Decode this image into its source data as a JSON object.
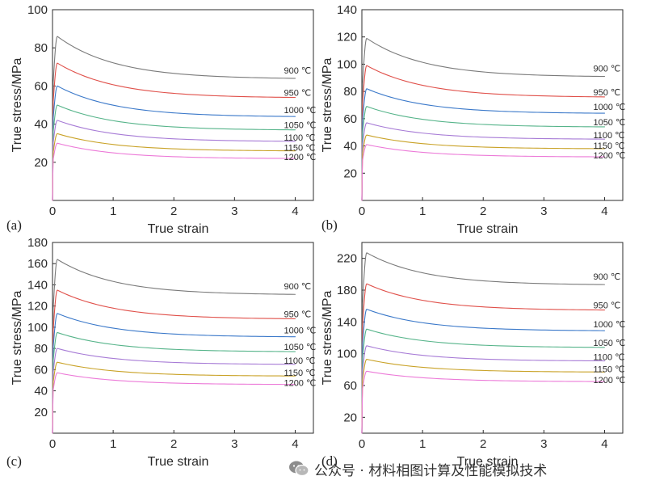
{
  "figure": {
    "watermark": "公众号 · 材料相图计算及性能模拟技术"
  },
  "chart_data": [
    {
      "panel_label": "(a)",
      "type": "line",
      "xlabel": "True strain",
      "ylabel": "True stress/MPa",
      "xlim": [
        0,
        4.3
      ],
      "ylim": [
        0,
        100
      ],
      "xticks": [
        "0",
        "1",
        "2",
        "3",
        "4"
      ],
      "yticks": [
        "20",
        "40",
        "60",
        "80",
        "100"
      ],
      "grid": false,
      "series": [
        {
          "name": "900 ℃",
          "color": "#7a7a7a",
          "peak_strain": 0.08,
          "peak_stress": 86,
          "final_stress": 64
        },
        {
          "name": "950 ℃",
          "color": "#e0504a",
          "peak_strain": 0.08,
          "peak_stress": 72,
          "final_stress": 54
        },
        {
          "name": "1000 ℃",
          "color": "#3a78c9",
          "peak_strain": 0.08,
          "peak_stress": 60,
          "final_stress": 44
        },
        {
          "name": "1050 ℃",
          "color": "#56b48a",
          "peak_strain": 0.08,
          "peak_stress": 50,
          "final_stress": 37
        },
        {
          "name": "1100 ℃",
          "color": "#a77bd6",
          "peak_strain": 0.08,
          "peak_stress": 42,
          "final_stress": 31
        },
        {
          "name": "1150 ℃",
          "color": "#c9a227",
          "peak_strain": 0.08,
          "peak_stress": 35,
          "final_stress": 26
        },
        {
          "name": "1200 ℃",
          "color": "#ec7ad8",
          "peak_strain": 0.08,
          "peak_stress": 30,
          "final_stress": 22
        }
      ]
    },
    {
      "panel_label": "(b)",
      "type": "line",
      "xlabel": "True strain",
      "ylabel": "True stress/MPa",
      "xlim": [
        0,
        4.3
      ],
      "ylim": [
        0,
        140
      ],
      "xticks": [
        "0",
        "1",
        "2",
        "3",
        "4"
      ],
      "yticks": [
        "20",
        "40",
        "60",
        "80",
        "100",
        "120",
        "140"
      ],
      "grid": false,
      "series": [
        {
          "name": "900 ℃",
          "color": "#7a7a7a",
          "peak_strain": 0.08,
          "peak_stress": 119,
          "final_stress": 91
        },
        {
          "name": "950 ℃",
          "color": "#e0504a",
          "peak_strain": 0.08,
          "peak_stress": 99,
          "final_stress": 76
        },
        {
          "name": "1000 ℃",
          "color": "#3a78c9",
          "peak_strain": 0.08,
          "peak_stress": 82,
          "final_stress": 64
        },
        {
          "name": "1050 ℃",
          "color": "#56b48a",
          "peak_strain": 0.08,
          "peak_stress": 69,
          "final_stress": 54
        },
        {
          "name": "1100 ℃",
          "color": "#a77bd6",
          "peak_strain": 0.08,
          "peak_stress": 57,
          "final_stress": 45
        },
        {
          "name": "1150 ℃",
          "color": "#c9a227",
          "peak_strain": 0.08,
          "peak_stress": 48,
          "final_stress": 38
        },
        {
          "name": "1200 ℃",
          "color": "#ec7ad8",
          "peak_strain": 0.08,
          "peak_stress": 41,
          "final_stress": 32
        }
      ]
    },
    {
      "panel_label": "(c)",
      "type": "line",
      "xlabel": "True strain",
      "ylabel": "True stress/MPa",
      "xlim": [
        0,
        4.3
      ],
      "ylim": [
        0,
        180
      ],
      "xticks": [
        "0",
        "1",
        "2",
        "3",
        "4"
      ],
      "yticks": [
        "20",
        "40",
        "60",
        "80",
        "100",
        "120",
        "140",
        "160",
        "180"
      ],
      "grid": false,
      "series": [
        {
          "name": "900 ℃",
          "color": "#7a7a7a",
          "peak_strain": 0.08,
          "peak_stress": 164,
          "final_stress": 131
        },
        {
          "name": "950 ℃",
          "color": "#e0504a",
          "peak_strain": 0.08,
          "peak_stress": 135,
          "final_stress": 108
        },
        {
          "name": "1000 ℃",
          "color": "#3a78c9",
          "peak_strain": 0.08,
          "peak_stress": 113,
          "final_stress": 91
        },
        {
          "name": "1050 ℃",
          "color": "#56b48a",
          "peak_strain": 0.08,
          "peak_stress": 95,
          "final_stress": 77
        },
        {
          "name": "1100 ℃",
          "color": "#a77bd6",
          "peak_strain": 0.08,
          "peak_stress": 80,
          "final_stress": 65
        },
        {
          "name": "1150 ℃",
          "color": "#c9a227",
          "peak_strain": 0.08,
          "peak_stress": 67,
          "final_stress": 54
        },
        {
          "name": "1200 ℃",
          "color": "#ec7ad8",
          "peak_strain": 0.08,
          "peak_stress": 57,
          "final_stress": 46
        }
      ]
    },
    {
      "panel_label": "(d)",
      "type": "line",
      "xlabel": "True strain",
      "ylabel": "True stress/MPa",
      "xlim": [
        0,
        4.3
      ],
      "ylim": [
        0,
        240
      ],
      "xticks": [
        "0",
        "1",
        "2",
        "3",
        "4"
      ],
      "yticks": [
        "20",
        "60",
        "100",
        "140",
        "180",
        "220"
      ],
      "grid": false,
      "series": [
        {
          "name": "900 ℃",
          "color": "#7a7a7a",
          "peak_strain": 0.08,
          "peak_stress": 227,
          "final_stress": 187
        },
        {
          "name": "950 ℃",
          "color": "#e0504a",
          "peak_strain": 0.08,
          "peak_stress": 188,
          "final_stress": 155
        },
        {
          "name": "1000 ℃",
          "color": "#3a78c9",
          "peak_strain": 0.08,
          "peak_stress": 156,
          "final_stress": 129
        },
        {
          "name": "1050 ℃",
          "color": "#56b48a",
          "peak_strain": 0.08,
          "peak_stress": 131,
          "final_stress": 108
        },
        {
          "name": "1100 ℃",
          "color": "#a77bd6",
          "peak_strain": 0.08,
          "peak_stress": 110,
          "final_stress": 91
        },
        {
          "name": "1150 ℃",
          "color": "#c9a227",
          "peak_strain": 0.08,
          "peak_stress": 93,
          "final_stress": 77
        },
        {
          "name": "1200 ℃",
          "color": "#ec7ad8",
          "peak_strain": 0.08,
          "peak_stress": 78,
          "final_stress": 65
        }
      ]
    }
  ]
}
